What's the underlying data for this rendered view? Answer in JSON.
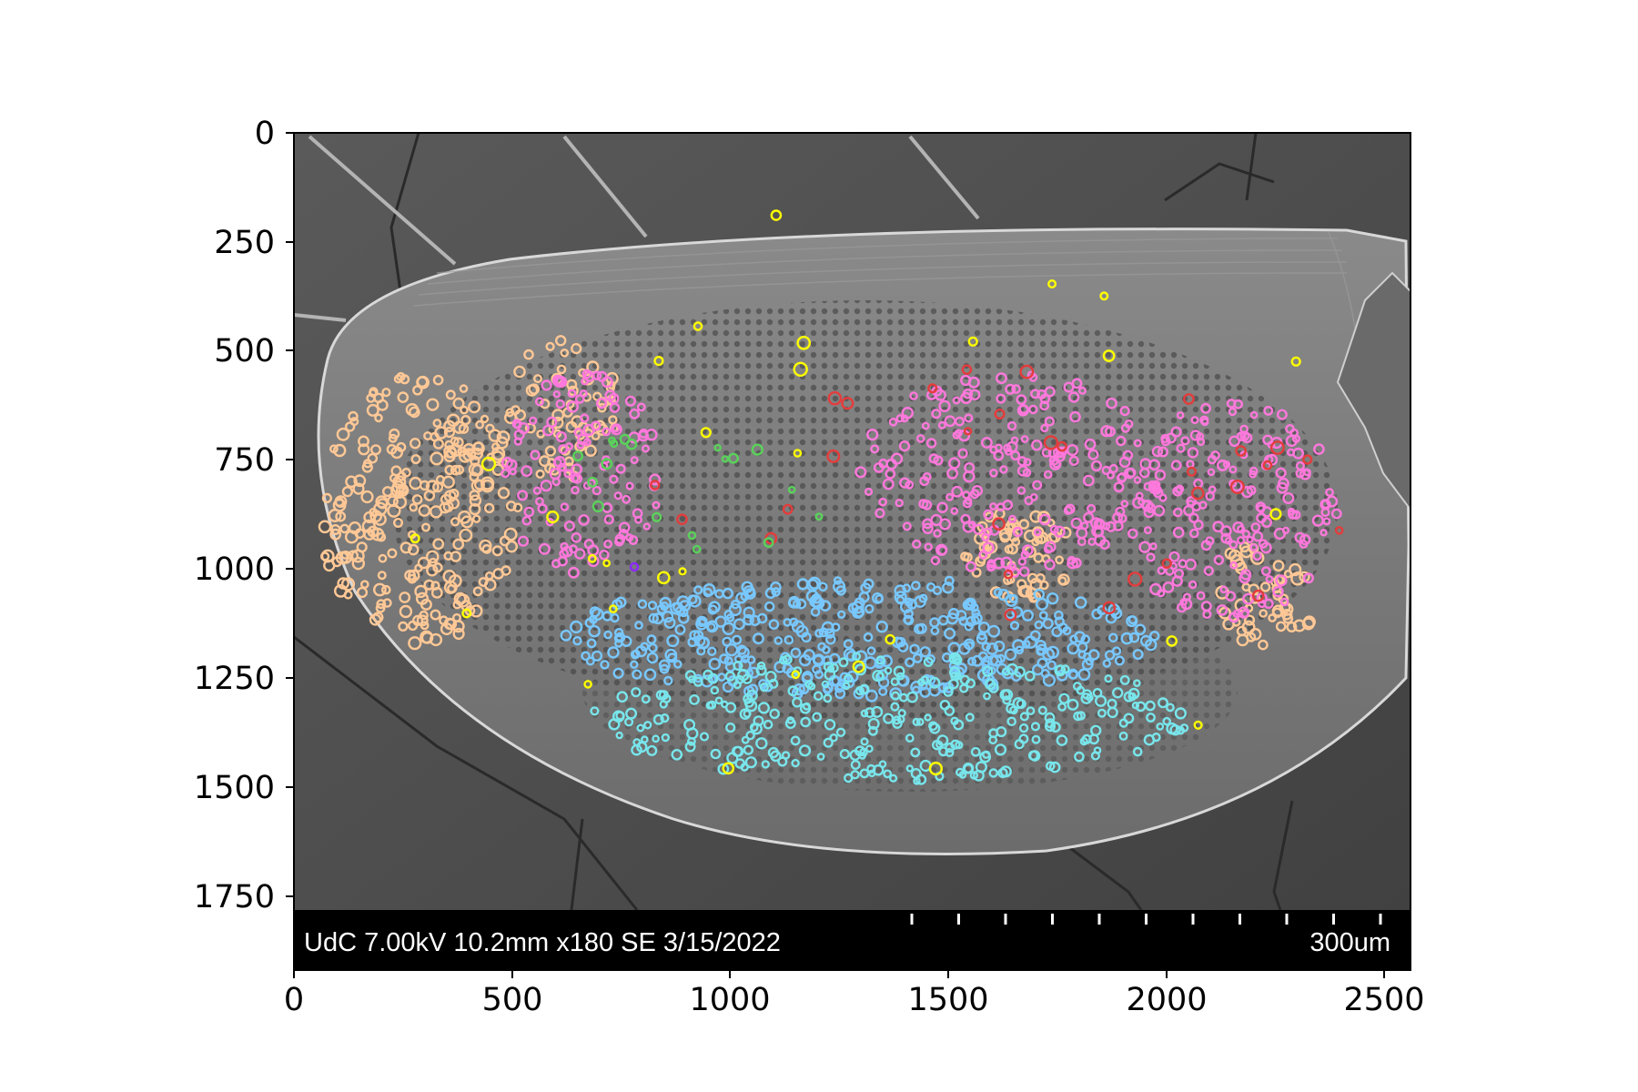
{
  "figure": {
    "x_ticks": [
      "0",
      "500",
      "1000",
      "1500",
      "2000",
      "2500"
    ],
    "y_ticks": [
      "0",
      "250",
      "500",
      "750",
      "1000",
      "1250",
      "1500",
      "1750"
    ],
    "x_range": [
      0,
      2560
    ],
    "y_range": [
      1920,
      0
    ]
  },
  "sem_info_bar": {
    "left_text": "UdC 7.00kV 10.2mm x180 SE  3/15/2022",
    "scale_text": "300um"
  },
  "marker_colors": {
    "peach": "#ffc896",
    "pink": "#ff78dc",
    "light_blue": "#78c8ff",
    "cyan": "#78e6ec",
    "yellow": "#ffff00",
    "red": "#e43c3c",
    "green": "#5ad25a",
    "purple": "#8c28ff"
  }
}
